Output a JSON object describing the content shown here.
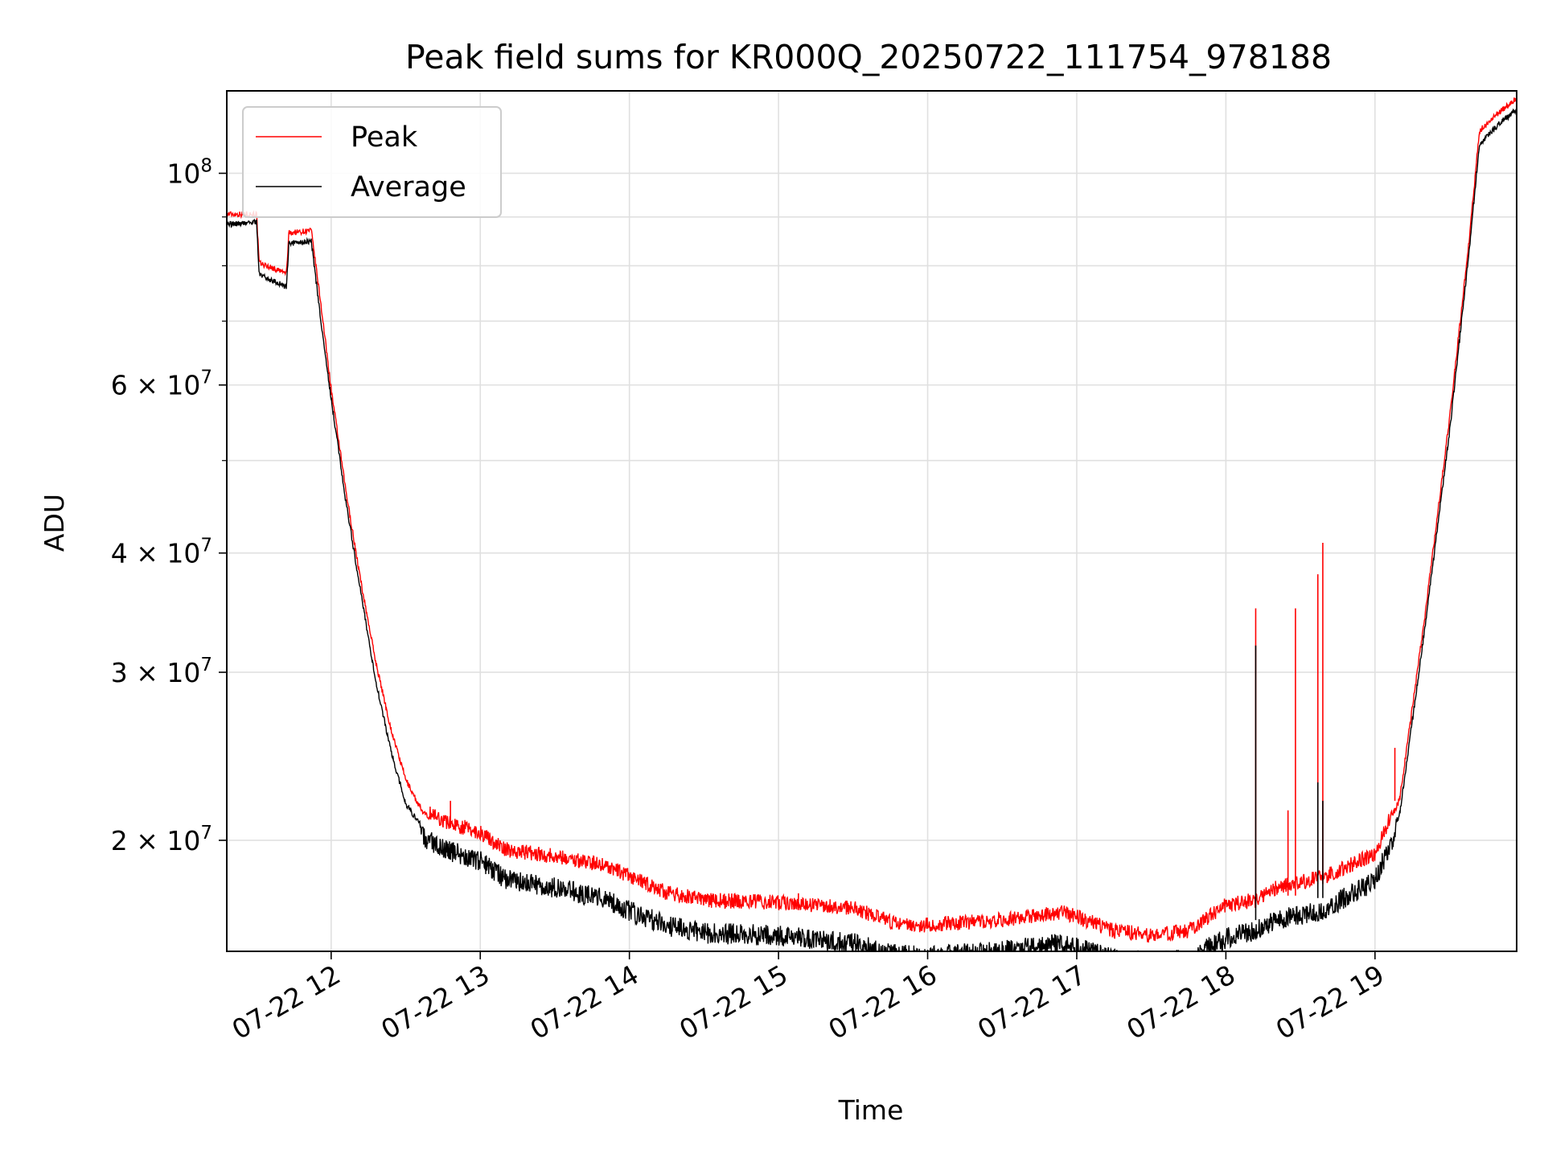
{
  "chart_data": {
    "type": "line",
    "title": "Peak field sums for KR000Q_20250722_111754_978188",
    "xlabel": "Time",
    "ylabel": "ADU",
    "y_scale": "log",
    "ylim": [
      15300000,
      122000000
    ],
    "x_range": [
      "2025-07-22 11:18",
      "2025-07-22 19:57"
    ],
    "x_ticks": [
      "07-22 12",
      "07-22 13",
      "07-22 14",
      "07-22 15",
      "07-22 16",
      "07-22 17",
      "07-22 18",
      "07-22 19"
    ],
    "x_tick_times": [
      "2025-07-22 12:00",
      "2025-07-22 13:00",
      "2025-07-22 14:00",
      "2025-07-22 15:00",
      "2025-07-22 16:00",
      "2025-07-22 17:00",
      "2025-07-22 18:00",
      "2025-07-22 19:00"
    ],
    "y_ticks": [
      {
        "value": 20000000,
        "label": "2×10^7",
        "base": "2 × 10",
        "exp": "7"
      },
      {
        "value": 30000000,
        "label": "3×10^7",
        "base": "3 × 10",
        "exp": "7"
      },
      {
        "value": 40000000,
        "label": "4×10^7",
        "base": "4 × 10",
        "exp": "7"
      },
      {
        "value": 60000000,
        "label": "6×10^7",
        "base": "6 × 10",
        "exp": "7"
      },
      {
        "value": 100000000,
        "label": "10^8",
        "base": "10",
        "exp": "8"
      }
    ],
    "y_minor_ticks": [
      50000000,
      70000000,
      80000000,
      90000000
    ],
    "grid": true,
    "legend_position": "top-left",
    "series": [
      {
        "name": "Peak",
        "color": "#ff0000",
        "points": [
          [
            "2025-07-22 11:18",
            90000000
          ],
          [
            "2025-07-22 11:30",
            90000000
          ],
          [
            "2025-07-22 11:31",
            80000000
          ],
          [
            "2025-07-22 11:42",
            78000000
          ],
          [
            "2025-07-22 11:43",
            86000000
          ],
          [
            "2025-07-22 11:52",
            86500000
          ],
          [
            "2025-07-22 11:56",
            72000000
          ],
          [
            "2025-07-22 12:00",
            59000000
          ],
          [
            "2025-07-22 12:06",
            46000000
          ],
          [
            "2025-07-22 12:12",
            37000000
          ],
          [
            "2025-07-22 12:18",
            30500000
          ],
          [
            "2025-07-22 12:24",
            26000000
          ],
          [
            "2025-07-22 12:30",
            23000000
          ],
          [
            "2025-07-22 12:37",
            21200000
          ],
          [
            "2025-07-22 12:45",
            20600000
          ],
          [
            "2025-07-22 13:00",
            20000000
          ],
          [
            "2025-07-22 13:10",
            19200000
          ],
          [
            "2025-07-22 13:30",
            18900000
          ],
          [
            "2025-07-22 13:50",
            18500000
          ],
          [
            "2025-07-22 14:00",
            18000000
          ],
          [
            "2025-07-22 14:15",
            17300000
          ],
          [
            "2025-07-22 14:30",
            17000000
          ],
          [
            "2025-07-22 15:00",
            16900000
          ],
          [
            "2025-07-22 15:30",
            16700000
          ],
          [
            "2025-07-22 15:45",
            16100000
          ],
          [
            "2025-07-22 16:00",
            16000000
          ],
          [
            "2025-07-22 16:30",
            16200000
          ],
          [
            "2025-07-22 16:55",
            16500000
          ],
          [
            "2025-07-22 17:15",
            15800000
          ],
          [
            "2025-07-22 17:30",
            15600000
          ],
          [
            "2025-07-22 17:45",
            15800000
          ],
          [
            "2025-07-22 18:00",
            16800000
          ],
          [
            "2025-07-22 18:12",
            17000000
          ],
          [
            "2025-07-22 18:20",
            17500000
          ],
          [
            "2025-07-22 18:40",
            18000000
          ],
          [
            "2025-07-22 19:00",
            19000000
          ],
          [
            "2025-07-22 19:10",
            22000000
          ],
          [
            "2025-07-22 19:20",
            34000000
          ],
          [
            "2025-07-22 19:30",
            55000000
          ],
          [
            "2025-07-22 19:38",
            85000000
          ],
          [
            "2025-07-22 19:42",
            110000000
          ],
          [
            "2025-07-22 19:50",
            115000000
          ],
          [
            "2025-07-22 19:57",
            119000000
          ]
        ],
        "spikes": [
          [
            "2025-07-22 18:12",
            35000000
          ],
          [
            "2025-07-22 18:28",
            35000000
          ],
          [
            "2025-07-22 18:37",
            38000000
          ],
          [
            "2025-07-22 18:39",
            41000000
          ],
          [
            "2025-07-22 18:25",
            21500000
          ],
          [
            "2025-07-22 15:08",
            17600000
          ],
          [
            "2025-07-22 12:48",
            22000000
          ],
          [
            "2025-07-22 19:08",
            25000000
          ]
        ]
      },
      {
        "name": "Average",
        "color": "#000000",
        "points": [
          [
            "2025-07-22 11:18",
            89000000
          ],
          [
            "2025-07-22 11:30",
            89500000
          ],
          [
            "2025-07-22 11:31",
            79000000
          ],
          [
            "2025-07-22 11:42",
            76500000
          ],
          [
            "2025-07-22 11:43",
            85000000
          ],
          [
            "2025-07-22 11:52",
            85500000
          ],
          [
            "2025-07-22 11:56",
            70000000
          ],
          [
            "2025-07-22 12:00",
            58500000
          ],
          [
            "2025-07-22 12:06",
            45500000
          ],
          [
            "2025-07-22 12:12",
            36500000
          ],
          [
            "2025-07-22 12:18",
            29500000
          ],
          [
            "2025-07-22 12:24",
            25000000
          ],
          [
            "2025-07-22 12:30",
            22000000
          ],
          [
            "2025-07-22 12:37",
            20700000
          ],
          [
            "2025-07-22 12:45",
            20100000
          ],
          [
            "2025-07-22 13:00",
            19500000
          ],
          [
            "2025-07-22 13:10",
            18700000
          ],
          [
            "2025-07-22 13:30",
            18300000
          ],
          [
            "2025-07-22 13:50",
            17800000
          ],
          [
            "2025-07-22 14:00",
            17300000
          ],
          [
            "2025-07-22 14:15",
            16700000
          ],
          [
            "2025-07-22 14:30",
            16400000
          ],
          [
            "2025-07-22 15:00",
            16300000
          ],
          [
            "2025-07-22 15:30",
            16000000
          ],
          [
            "2025-07-22 15:45",
            15600000
          ],
          [
            "2025-07-22 16:00",
            15500000
          ],
          [
            "2025-07-22 16:30",
            15700000
          ],
          [
            "2025-07-22 16:55",
            16000000
          ],
          [
            "2025-07-22 17:15",
            15400000
          ],
          [
            "2025-07-22 17:30",
            15300000
          ],
          [
            "2025-07-22 17:45",
            15400000
          ],
          [
            "2025-07-22 18:00",
            16200000
          ],
          [
            "2025-07-22 18:12",
            16500000
          ],
          [
            "2025-07-22 18:20",
            16900000
          ],
          [
            "2025-07-22 18:40",
            17400000
          ],
          [
            "2025-07-22 19:00",
            18600000
          ],
          [
            "2025-07-22 19:10",
            21500000
          ],
          [
            "2025-07-22 19:20",
            33500000
          ],
          [
            "2025-07-22 19:30",
            54000000
          ],
          [
            "2025-07-22 19:38",
            84000000
          ],
          [
            "2025-07-22 19:42",
            108000000
          ],
          [
            "2025-07-22 19:50",
            113500000
          ],
          [
            "2025-07-22 19:57",
            117500000
          ]
        ],
        "spikes": [
          [
            "2025-07-22 18:12",
            32000000
          ],
          [
            "2025-07-22 18:37",
            23000000
          ],
          [
            "2025-07-22 18:39",
            22000000
          ]
        ]
      }
    ]
  }
}
